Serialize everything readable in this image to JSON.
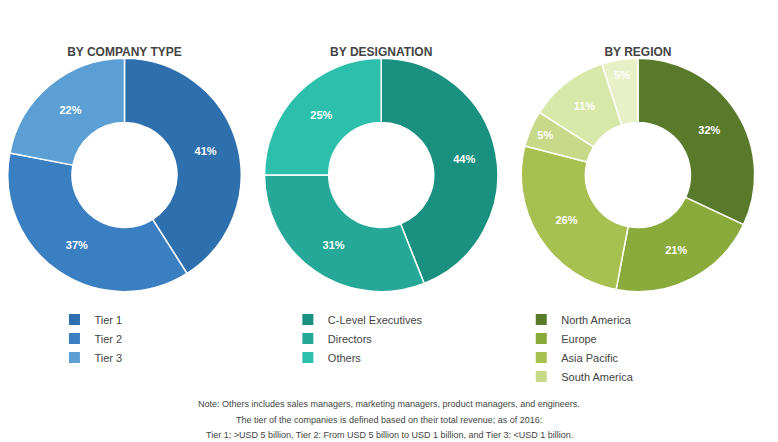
{
  "chart_data": [
    {
      "type": "pie",
      "title": "BY COMPANY TYPE",
      "categories": [
        "Tier 1",
        "Tier 2",
        "Tier 3"
      ],
      "values": [
        41,
        37,
        22
      ],
      "value_labels": [
        "41%",
        "37%",
        "22%"
      ],
      "colors": [
        "#2e6fad",
        "#3a7fc1",
        "#5b9fd4"
      ],
      "data_labels": true,
      "legend": "bottom"
    },
    {
      "type": "pie",
      "title": "BY DESIGNATION",
      "categories": [
        "C-Level Executives",
        "Directors",
        "Others"
      ],
      "values": [
        44,
        31,
        25
      ],
      "value_labels": [
        "44%",
        "31%",
        "25%"
      ],
      "colors": [
        "#1a9080",
        "#25a898",
        "#2bbfac"
      ],
      "data_labels": true,
      "legend": "bottom"
    },
    {
      "type": "pie",
      "title": "BY REGION",
      "categories": [
        "North America",
        "Europe",
        "Asia Pacific",
        "South America",
        null,
        null
      ],
      "values": [
        32,
        21,
        26,
        5,
        11,
        5
      ],
      "value_labels": [
        "32%",
        "21%",
        "26%",
        "5%",
        "11%",
        "5%"
      ],
      "colors": [
        "#5a7a2b",
        "#8aab3c",
        "#a8c050",
        "#c8d98a",
        "#d8e8a8",
        "#e8f0c8"
      ],
      "data_labels": true,
      "legend": "bottom"
    }
  ],
  "annotations": [
    "Note: Others includes sales managers, marketing managers, product managers, and engineers.",
    "The tier of the companies is defined based on their total revenue; as of 2016:",
    "Tier 1: >USD 5 billion, Tier 2: From USD 5 billion to USD 1 billion, and Tier 3: <USD 1 billion."
  ]
}
